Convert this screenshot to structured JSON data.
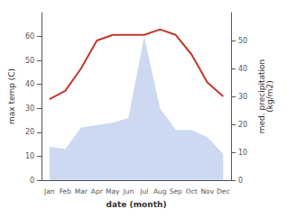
{
  "chart_data": {
    "type": "line",
    "categories": [
      "Jan",
      "Feb",
      "Mar",
      "Apr",
      "May",
      "Jun",
      "Jul",
      "Aug",
      "Sep",
      "Oct",
      "Nov",
      "Dec"
    ],
    "series": [
      {
        "type": "area",
        "color": "#c8d4f0",
        "values": [
          14,
          13,
          22,
          23,
          24,
          26,
          60,
          30,
          21,
          21,
          18,
          11
        ]
      },
      {
        "type": "line",
        "axis": "y2",
        "color": "#c0392b",
        "values": [
          29,
          32,
          40,
          50,
          52,
          52,
          52,
          54,
          52,
          45,
          35,
          30
        ]
      }
    ],
    "xlabel": "date (month)",
    "ylabel": "max temp (C)",
    "y2label": "med. precipitation\n(kg/m2)",
    "ylim": [
      0,
      70
    ],
    "yticks": [
      0,
      10,
      20,
      30,
      40,
      50,
      60
    ],
    "y2lim": [
      0,
      60
    ],
    "y2ticks": [
      0,
      10,
      20,
      30,
      40,
      50
    ],
    "grid": false
  }
}
